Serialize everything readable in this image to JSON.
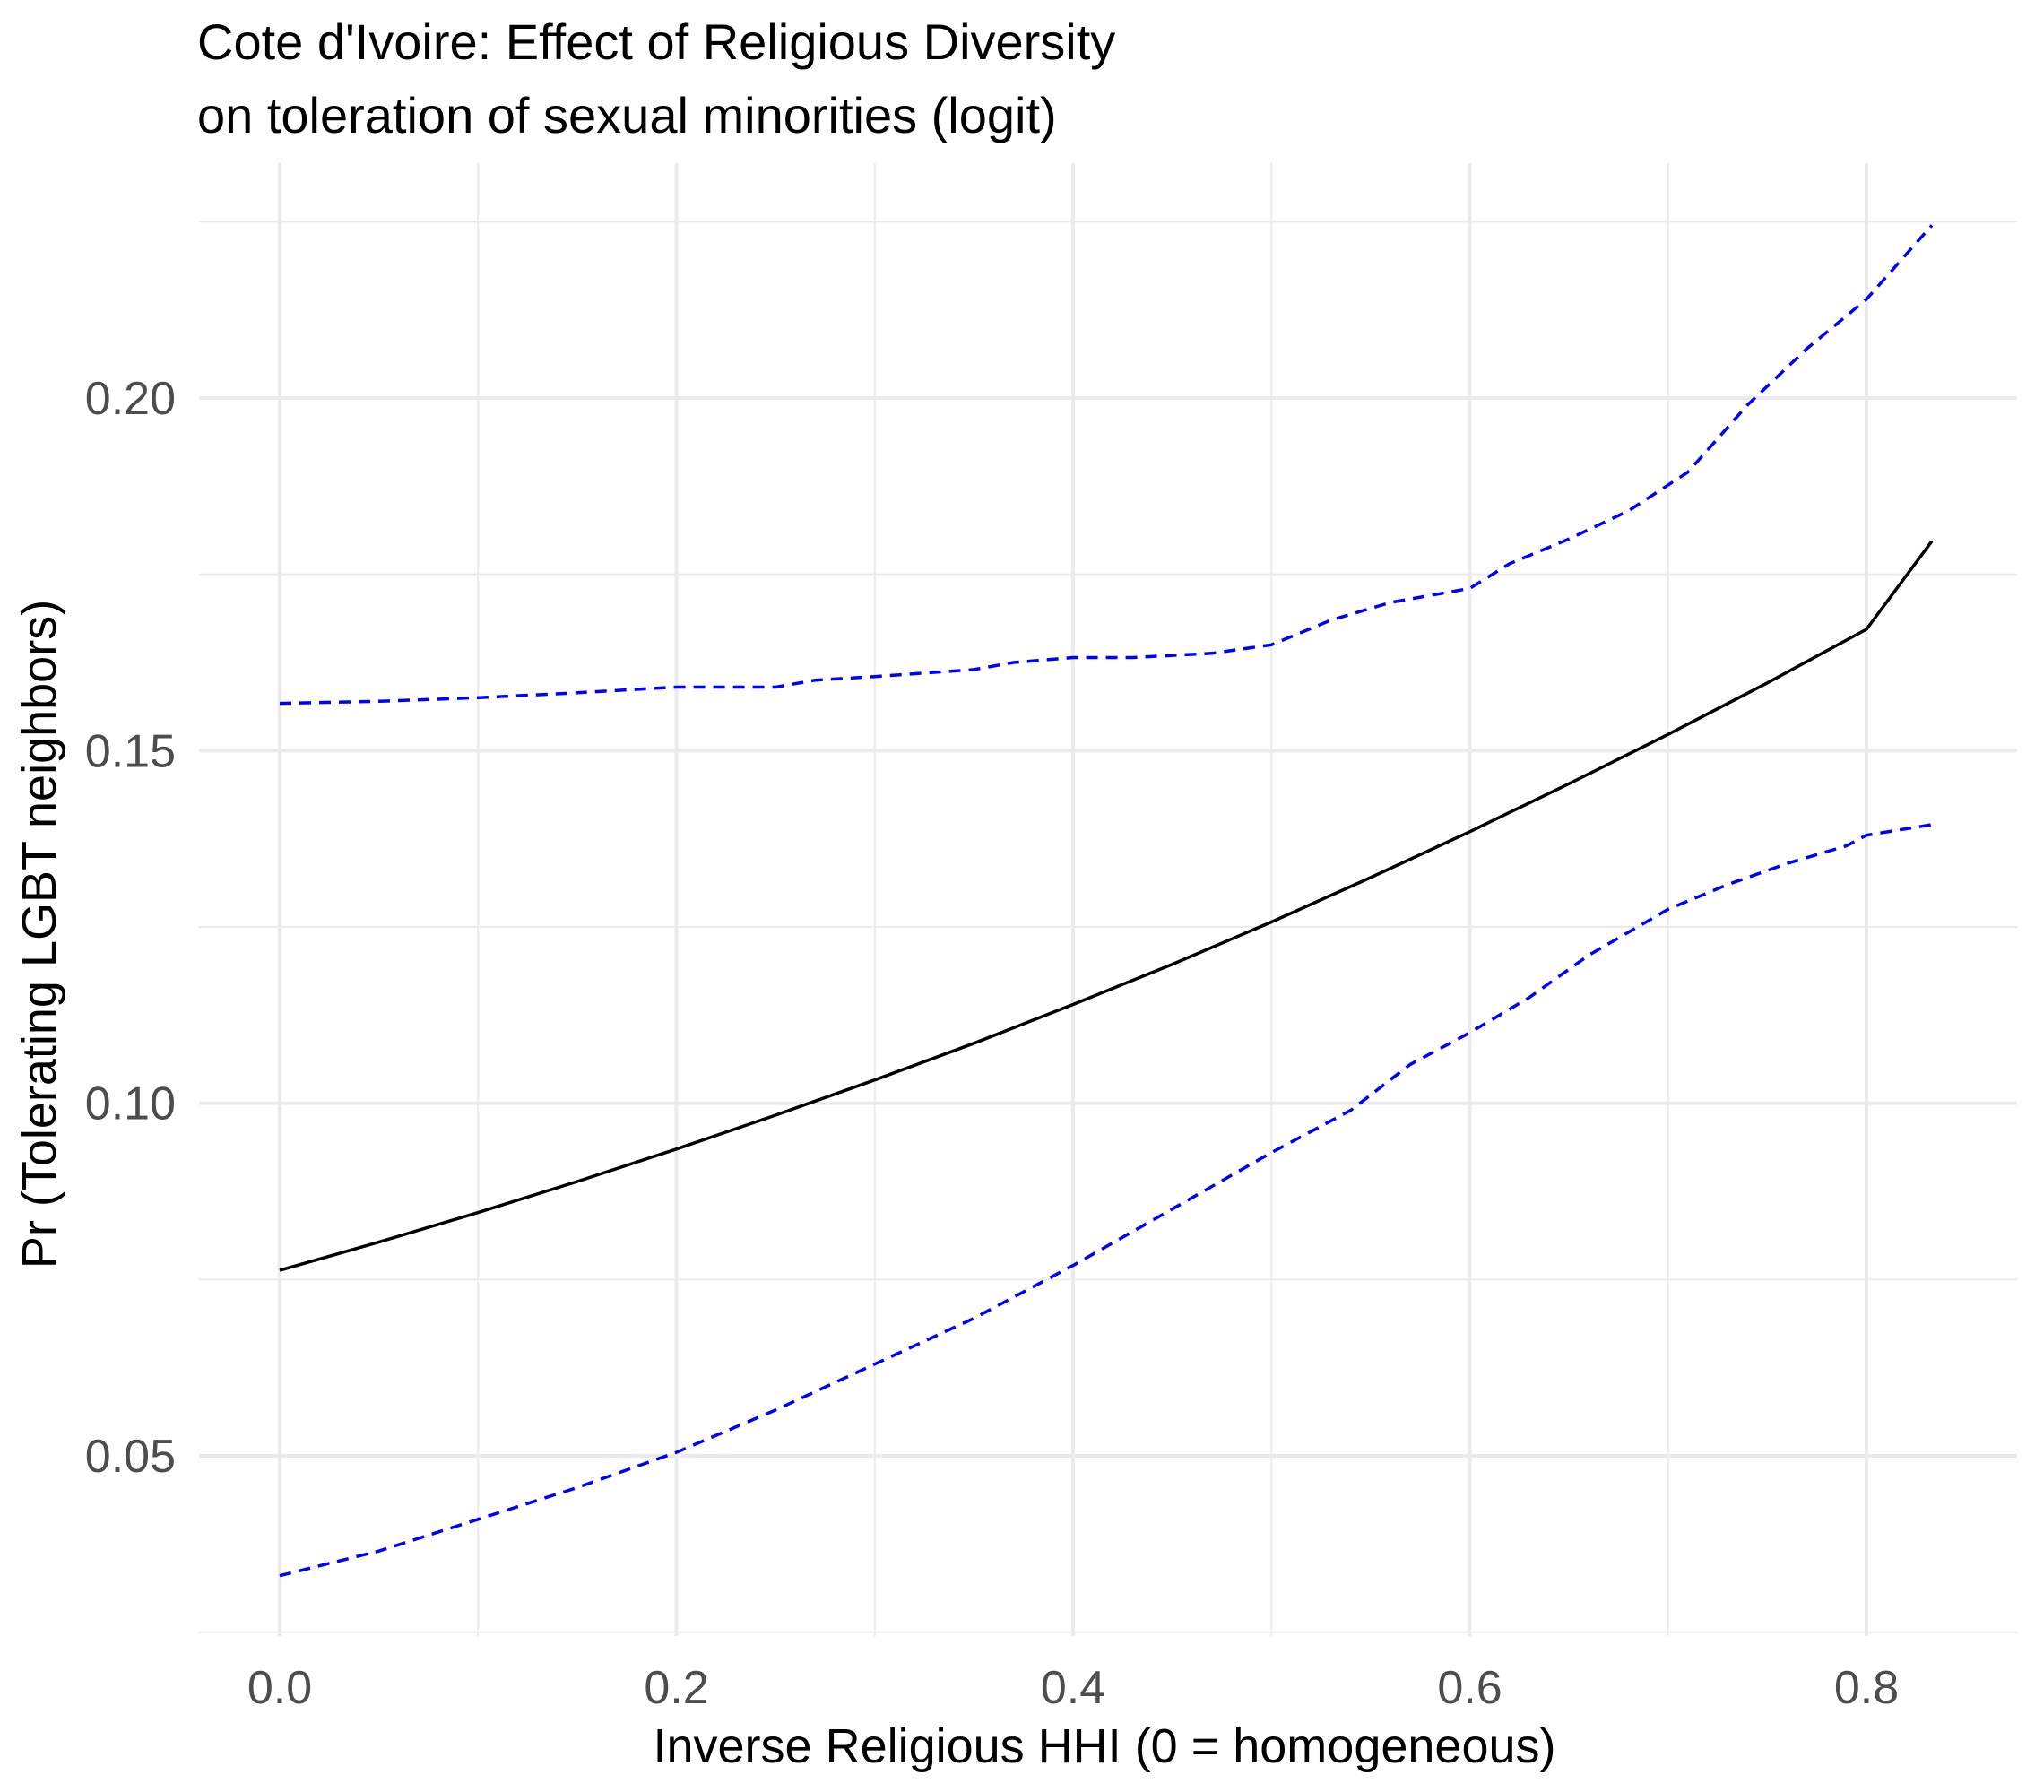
{
  "chart_data": {
    "type": "line",
    "title": "Cote d'Ivoire: Effect of Religious Diversity",
    "subtitle": "on toleration of sexual minorities (logit)",
    "xlabel": "Inverse Religious HHI (0 = homogeneous)",
    "ylabel": "Pr (Tolerating LGBT neighbors)",
    "xlim": [
      -0.04,
      0.87
    ],
    "ylim": [
      0.0265,
      0.2285
    ],
    "x_ticks": [
      0.0,
      0.2,
      0.4,
      0.6,
      0.8
    ],
    "x_tick_labels": [
      "0.0",
      "0.2",
      "0.4",
      "0.6",
      "0.8"
    ],
    "y_ticks": [
      0.05,
      0.1,
      0.15,
      0.2
    ],
    "y_tick_labels": [
      "0.05",
      "0.10",
      "0.15",
      "0.20"
    ],
    "grid": true,
    "legend": "none",
    "colors": {
      "estimate": "#000000",
      "bounds": "#0000ff",
      "grid": "#ebebeb"
    },
    "series": [
      {
        "role": "estimate",
        "style": "solid",
        "x": [
          0.0,
          0.05,
          0.1,
          0.15,
          0.2,
          0.25,
          0.3,
          0.35,
          0.4,
          0.45,
          0.5,
          0.55,
          0.6,
          0.65,
          0.7,
          0.75,
          0.8,
          0.833
        ],
        "y": [
          0.0763,
          0.0803,
          0.0845,
          0.0889,
          0.0935,
          0.0983,
          0.1033,
          0.1085,
          0.114,
          0.1197,
          0.1257,
          0.132,
          0.1385,
          0.1453,
          0.1523,
          0.1596,
          0.1672,
          0.1797
        ]
      },
      {
        "role": "upper-bound",
        "style": "dashed",
        "x": [
          0.0,
          0.05,
          0.1,
          0.15,
          0.2,
          0.25,
          0.27,
          0.3,
          0.35,
          0.37,
          0.4,
          0.43,
          0.47,
          0.5,
          0.53,
          0.56,
          0.6,
          0.62,
          0.65,
          0.68,
          0.71,
          0.74,
          0.77,
          0.8,
          0.833
        ],
        "y": [
          0.1567,
          0.157,
          0.1575,
          0.1582,
          0.159,
          0.159,
          0.16,
          0.1605,
          0.1615,
          0.1625,
          0.1632,
          0.1632,
          0.1638,
          0.165,
          0.1685,
          0.171,
          0.173,
          0.1765,
          0.18,
          0.184,
          0.1895,
          0.199,
          0.207,
          0.214,
          0.2245
        ]
      },
      {
        "role": "lower-bound",
        "style": "dashed",
        "x": [
          0.0,
          0.05,
          0.1,
          0.15,
          0.2,
          0.25,
          0.3,
          0.35,
          0.4,
          0.45,
          0.5,
          0.54,
          0.57,
          0.6,
          0.63,
          0.66,
          0.7,
          0.73,
          0.76,
          0.79,
          0.8,
          0.833
        ],
        "y": [
          0.033,
          0.0365,
          0.041,
          0.0455,
          0.0505,
          0.0565,
          0.063,
          0.0695,
          0.077,
          0.085,
          0.093,
          0.099,
          0.1055,
          0.11,
          0.115,
          0.121,
          0.1275,
          0.131,
          0.134,
          0.1365,
          0.138,
          0.1395
        ]
      }
    ]
  }
}
